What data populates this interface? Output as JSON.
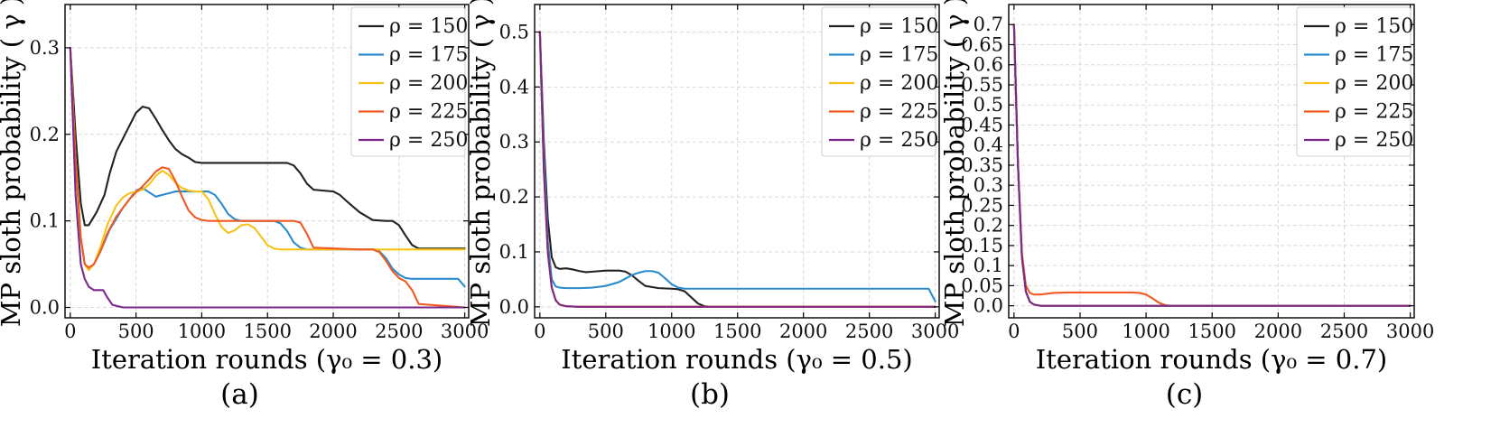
{
  "figure": {
    "ylabel": "MP sloth probability ( γ )",
    "legend_labels": [
      "ρ = 150",
      "ρ = 175",
      "ρ = 200",
      "ρ = 225",
      "ρ = 250"
    ]
  },
  "chart_data": [
    {
      "type": "line",
      "panel_label": "(a)",
      "xlabel": "Iteration rounds  (γ₀ = 0.3)",
      "ylabel": "MP sloth probability ( γ )",
      "xlim": [
        -40,
        3030
      ],
      "ylim": [
        -0.012,
        0.35
      ],
      "xticks": [
        0,
        500,
        1000,
        1500,
        2000,
        2500,
        3000
      ],
      "yticks": [
        0.0,
        0.1,
        0.2,
        0.3
      ],
      "ytick_labels": [
        "0.0",
        "0.1",
        "0.2",
        "0.3"
      ],
      "legend": "top-right",
      "series": [
        {
          "name": "ρ = 150",
          "color": "#222222",
          "x": [
            0,
            40,
            80,
            110,
            140,
            200,
            260,
            300,
            350,
            400,
            450,
            500,
            550,
            600,
            650,
            700,
            750,
            800,
            850,
            900,
            950,
            1000,
            1050,
            1100,
            1500,
            1650,
            1700,
            1750,
            1800,
            1850,
            2000,
            2050,
            2100,
            2200,
            2300,
            2400,
            2450,
            2500,
            2550,
            2600,
            2650,
            3000
          ],
          "y": [
            0.3,
            0.2,
            0.12,
            0.095,
            0.095,
            0.11,
            0.13,
            0.155,
            0.18,
            0.195,
            0.21,
            0.225,
            0.232,
            0.23,
            0.218,
            0.205,
            0.193,
            0.183,
            0.177,
            0.173,
            0.168,
            0.167,
            0.167,
            0.167,
            0.167,
            0.167,
            0.164,
            0.155,
            0.143,
            0.136,
            0.134,
            0.13,
            0.123,
            0.11,
            0.101,
            0.1,
            0.1,
            0.095,
            0.083,
            0.072,
            0.068,
            0.068
          ]
        },
        {
          "name": "ρ = 175",
          "color": "#2b8ccd",
          "x": [
            0,
            40,
            80,
            110,
            140,
            180,
            230,
            300,
            400,
            500,
            550,
            600,
            650,
            700,
            750,
            800,
            900,
            1000,
            1050,
            1100,
            1150,
            1200,
            1250,
            1300,
            1400,
            1550,
            1600,
            1650,
            1700,
            1750,
            1800,
            2200,
            2300,
            2350,
            2400,
            2450,
            2500,
            2550,
            2600,
            2650,
            2700,
            2950,
            3000
          ],
          "y": [
            0.3,
            0.17,
            0.08,
            0.05,
            0.045,
            0.05,
            0.065,
            0.09,
            0.115,
            0.135,
            0.138,
            0.133,
            0.128,
            0.13,
            0.132,
            0.134,
            0.134,
            0.134,
            0.134,
            0.13,
            0.12,
            0.108,
            0.102,
            0.1,
            0.1,
            0.1,
            0.097,
            0.088,
            0.075,
            0.069,
            0.067,
            0.067,
            0.067,
            0.065,
            0.057,
            0.045,
            0.038,
            0.034,
            0.033,
            0.033,
            0.033,
            0.033,
            0.024
          ]
        },
        {
          "name": "ρ = 200",
          "color": "#f7c318",
          "x": [
            0,
            40,
            80,
            110,
            140,
            180,
            230,
            280,
            350,
            400,
            450,
            500,
            550,
            600,
            650,
            700,
            750,
            800,
            850,
            900,
            950,
            1000,
            1050,
            1100,
            1150,
            1200,
            1250,
            1300,
            1350,
            1400,
            1450,
            1500,
            1550,
            1600,
            1700,
            3000
          ],
          "y": [
            0.3,
            0.17,
            0.08,
            0.05,
            0.043,
            0.05,
            0.07,
            0.095,
            0.118,
            0.127,
            0.132,
            0.134,
            0.136,
            0.142,
            0.152,
            0.158,
            0.153,
            0.144,
            0.138,
            0.135,
            0.134,
            0.134,
            0.125,
            0.108,
            0.093,
            0.086,
            0.089,
            0.095,
            0.096,
            0.092,
            0.082,
            0.072,
            0.068,
            0.067,
            0.067,
            0.067
          ]
        },
        {
          "name": "ρ = 225",
          "color": "#f05a22",
          "x": [
            0,
            40,
            80,
            110,
            140,
            180,
            230,
            280,
            350,
            400,
            450,
            500,
            550,
            600,
            650,
            700,
            750,
            800,
            850,
            900,
            950,
            1000,
            1050,
            1100,
            1700,
            1750,
            1800,
            1850,
            2200,
            2300,
            2350,
            2400,
            2450,
            2500,
            2550,
            2600,
            2650,
            3000
          ],
          "y": [
            0.3,
            0.17,
            0.08,
            0.05,
            0.046,
            0.05,
            0.065,
            0.085,
            0.105,
            0.115,
            0.125,
            0.133,
            0.14,
            0.148,
            0.157,
            0.162,
            0.16,
            0.146,
            0.128,
            0.112,
            0.104,
            0.101,
            0.1,
            0.1,
            0.1,
            0.098,
            0.085,
            0.069,
            0.067,
            0.067,
            0.064,
            0.054,
            0.042,
            0.034,
            0.03,
            0.02,
            0.004,
            0.0
          ]
        },
        {
          "name": "ρ = 250",
          "color": "#7a2a8a",
          "x": [
            0,
            40,
            80,
            110,
            140,
            180,
            220,
            250,
            280,
            320,
            400,
            500,
            3000
          ],
          "y": [
            0.3,
            0.13,
            0.05,
            0.033,
            0.024,
            0.02,
            0.02,
            0.02,
            0.012,
            0.003,
            0.0,
            0.0,
            0.0
          ]
        }
      ]
    },
    {
      "type": "line",
      "panel_label": "(b)",
      "xlabel": "Iteration rounds  (γ₀ = 0.5)",
      "ylabel": "MP sloth probability ( γ )",
      "xlim": [
        -40,
        3030
      ],
      "ylim": [
        -0.02,
        0.55
      ],
      "xticks": [
        0,
        500,
        1000,
        1500,
        2000,
        2500,
        3000
      ],
      "yticks": [
        0.0,
        0.1,
        0.2,
        0.3,
        0.4,
        0.5
      ],
      "ytick_labels": [
        "0.0",
        "0.1",
        "0.2",
        "0.3",
        "0.4",
        "0.5"
      ],
      "legend": "top-right",
      "series": [
        {
          "name": "ρ = 150",
          "color": "#222222",
          "x": [
            0,
            30,
            60,
            90,
            120,
            150,
            200,
            250,
            300,
            350,
            400,
            500,
            600,
            650,
            700,
            750,
            800,
            900,
            1000,
            1050,
            1100,
            1150,
            1200,
            1250,
            1300,
            3000
          ],
          "y": [
            0.5,
            0.3,
            0.16,
            0.09,
            0.072,
            0.069,
            0.07,
            0.068,
            0.065,
            0.063,
            0.064,
            0.066,
            0.066,
            0.064,
            0.057,
            0.047,
            0.038,
            0.034,
            0.033,
            0.032,
            0.028,
            0.017,
            0.006,
            0.001,
            0.0,
            0.0
          ]
        },
        {
          "name": "ρ = 175",
          "color": "#2b8ccd",
          "x": [
            0,
            30,
            60,
            90,
            120,
            150,
            200,
            300,
            400,
            500,
            600,
            700,
            750,
            800,
            850,
            900,
            950,
            1000,
            1050,
            1100,
            1500,
            2000,
            2500,
            2950,
            3000
          ],
          "y": [
            0.5,
            0.28,
            0.12,
            0.05,
            0.037,
            0.035,
            0.034,
            0.034,
            0.035,
            0.038,
            0.045,
            0.058,
            0.062,
            0.065,
            0.065,
            0.062,
            0.052,
            0.041,
            0.035,
            0.033,
            0.033,
            0.033,
            0.033,
            0.033,
            0.01
          ]
        },
        {
          "name": "ρ = 200",
          "color": "#f7c318",
          "x": [
            0,
            30,
            60,
            90,
            120,
            150,
            200,
            300,
            3000
          ],
          "y": [
            0.5,
            0.25,
            0.1,
            0.035,
            0.012,
            0.004,
            0.001,
            0.0,
            0.0
          ]
        },
        {
          "name": "ρ = 225",
          "color": "#f05a22",
          "x": [
            0,
            30,
            60,
            90,
            120,
            150,
            200,
            300,
            3000
          ],
          "y": [
            0.5,
            0.25,
            0.1,
            0.035,
            0.012,
            0.004,
            0.001,
            0.0,
            0.0
          ]
        },
        {
          "name": "ρ = 250",
          "color": "#7a2a8a",
          "x": [
            0,
            30,
            60,
            90,
            120,
            150,
            200,
            300,
            3000
          ],
          "y": [
            0.5,
            0.25,
            0.1,
            0.035,
            0.012,
            0.004,
            0.001,
            0.0,
            0.0
          ]
        }
      ]
    },
    {
      "type": "line",
      "panel_label": "(c)",
      "xlabel": "Iteration rounds  (γ₀ = 0.7)",
      "ylabel": "MP sloth probability ( γ )",
      "xlim": [
        -40,
        3030
      ],
      "ylim": [
        -0.03,
        0.75
      ],
      "xticks": [
        0,
        500,
        1000,
        1500,
        2000,
        2500,
        3000
      ],
      "yticks": [
        0.0,
        0.05,
        0.1,
        0.15,
        0.2,
        0.25,
        0.3,
        0.35,
        0.4,
        0.45,
        0.5,
        0.55,
        0.6,
        0.65,
        0.7
      ],
      "ytick_labels": [
        "0.0",
        "0.05",
        "0.1",
        "0.15",
        "0.2",
        "0.25",
        "0.3",
        "0.35",
        "0.4",
        "0.45",
        "0.5",
        "0.55",
        "0.6",
        "0.65",
        "0.7"
      ],
      "legend": "top-right",
      "series": [
        {
          "name": "ρ = 150",
          "color": "#222222",
          "x": [
            0,
            30,
            60,
            90,
            120,
            150,
            200,
            300,
            3000
          ],
          "y": [
            0.7,
            0.35,
            0.12,
            0.035,
            0.01,
            0.003,
            0.0,
            0.0,
            0.0
          ]
        },
        {
          "name": "ρ = 175",
          "color": "#2b8ccd",
          "x": [
            0,
            30,
            60,
            90,
            120,
            150,
            200,
            300,
            3000
          ],
          "y": [
            0.7,
            0.35,
            0.12,
            0.035,
            0.01,
            0.003,
            0.0,
            0.0,
            0.0
          ]
        },
        {
          "name": "ρ = 200",
          "color": "#f7c318",
          "x": [
            0,
            30,
            60,
            90,
            120,
            150,
            200,
            300,
            3000
          ],
          "y": [
            0.7,
            0.35,
            0.12,
            0.035,
            0.01,
            0.003,
            0.0,
            0.0,
            0.0
          ]
        },
        {
          "name": "ρ = 225",
          "color": "#f05a22",
          "x": [
            0,
            30,
            60,
            90,
            120,
            150,
            200,
            250,
            300,
            400,
            500,
            800,
            900,
            950,
            1000,
            1050,
            1100,
            1150,
            1200,
            3000
          ],
          "y": [
            0.7,
            0.35,
            0.13,
            0.05,
            0.032,
            0.028,
            0.028,
            0.03,
            0.032,
            0.033,
            0.033,
            0.033,
            0.033,
            0.032,
            0.028,
            0.018,
            0.007,
            0.001,
            0.0,
            0.0
          ]
        },
        {
          "name": "ρ = 250",
          "color": "#7a2a8a",
          "x": [
            0,
            30,
            60,
            90,
            120,
            150,
            200,
            300,
            3000
          ],
          "y": [
            0.7,
            0.35,
            0.12,
            0.035,
            0.01,
            0.003,
            0.0,
            0.0,
            0.0
          ]
        }
      ]
    }
  ]
}
